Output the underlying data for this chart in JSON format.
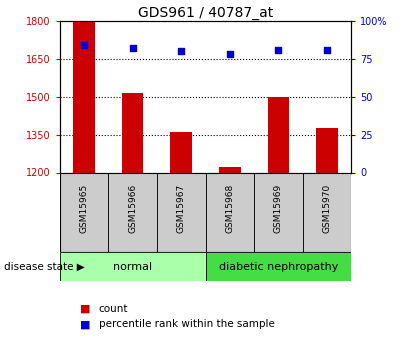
{
  "title": "GDS961 / 40787_at",
  "samples": [
    "GSM15965",
    "GSM15966",
    "GSM15967",
    "GSM15968",
    "GSM15969",
    "GSM15970"
  ],
  "bar_values": [
    1800,
    1515,
    1360,
    1220,
    1500,
    1375
  ],
  "percentile_values": [
    84,
    82,
    80,
    78,
    81,
    81
  ],
  "bar_base": 1200,
  "ylim_left": [
    1200,
    1800
  ],
  "ylim_right": [
    0,
    100
  ],
  "yticks_left": [
    1200,
    1350,
    1500,
    1650,
    1800
  ],
  "yticks_right": [
    0,
    25,
    50,
    75,
    100
  ],
  "bar_color": "#cc0000",
  "scatter_color": "#0000cc",
  "normal_label": "normal",
  "diabetic_label": "diabetic nephropathy",
  "disease_label": "disease state",
  "normal_bg": "#aaffaa",
  "diabetic_bg": "#44dd44",
  "sample_bg": "#cccccc",
  "legend_count": "count",
  "legend_percentile": "percentile rank within the sample",
  "title_fontsize": 10,
  "tick_fontsize": 7,
  "bar_width": 0.45
}
